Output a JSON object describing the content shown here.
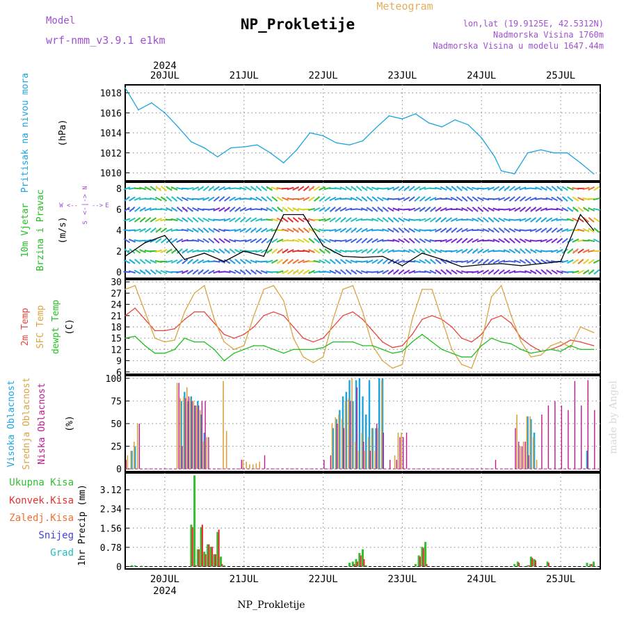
{
  "header": {
    "model_label": "Model",
    "model_name": "wrf-nmm_v3.9.1  e1km",
    "main_title": "NP_Prokletije",
    "subtitle": "Meteogram",
    "lonlat": "lon,lat (19.9125E, 42.5312N)",
    "elevation": "Nadmorska Visina 1760m",
    "model_elevation": "Nadmorska Visina u modelu 1647.44m"
  },
  "time_axis": {
    "year": "2024",
    "day_labels": [
      "20JUL",
      "21JUL",
      "22JUL",
      "23JUL",
      "24JUL",
      "25JUL"
    ]
  },
  "footer": {
    "station": "NP_Prokletije",
    "credit": "made by Angel"
  },
  "colors": {
    "pressure": "#1aa5e0",
    "wind_speed": "#000000",
    "temp2m": "#e8453c",
    "sfc_temp": "#d9a441",
    "dewpoint": "#20c020",
    "high_cloud": "#1aa5e0",
    "mid_cloud": "#d9a441",
    "low_cloud": "#c01890",
    "total_precip": "#30c030",
    "conv_precip": "#e83030",
    "frozen_precip": "#f07030",
    "snow": "#4040e0",
    "graupel": "#20c0c0",
    "grid": "#999999"
  },
  "chart_data": [
    {
      "type": "line",
      "panel": "pressure",
      "ylabel": [
        "Pritisak na nivou mora",
        "(hPa)"
      ],
      "yticks": [
        1010,
        1012,
        1014,
        1016,
        1018
      ],
      "ylim": [
        1009.2,
        1018.8
      ],
      "grid": true,
      "x_hours": [
        0,
        4,
        8,
        12,
        16,
        20,
        24,
        28,
        32,
        36,
        40,
        44,
        48,
        52,
        56,
        60,
        64,
        68,
        72,
        76,
        80,
        84,
        88,
        92,
        96,
        100,
        104,
        108,
        112,
        114,
        118,
        122,
        126,
        130,
        134,
        138,
        142
      ],
      "series": [
        {
          "name": "Pritisak na nivou mora",
          "values": [
            1018.5,
            1016.3,
            1017.0,
            1016.0,
            1014.6,
            1013.1,
            1012.5,
            1011.6,
            1012.5,
            1012.6,
            1012.8,
            1012.0,
            1011.0,
            1012.3,
            1014.0,
            1013.7,
            1013.0,
            1012.8,
            1013.2,
            1014.5,
            1015.7,
            1015.4,
            1015.9,
            1015.0,
            1014.6,
            1015.3,
            1014.8,
            1013.5,
            1011.6,
            1010.2,
            1009.9,
            1012.0,
            1012.3,
            1012.0,
            1012.0,
            1011.0,
            1009.9
          ]
        }
      ]
    },
    {
      "type": "line",
      "panel": "wind",
      "ylabel": [
        "10m Vjetar",
        "Brzina i Pravac",
        "(m/s)"
      ],
      "direction_legend": [
        "N",
        "W",
        "E",
        "S"
      ],
      "yticks": [
        0,
        2,
        4,
        6,
        8
      ],
      "ylim": [
        -0.6,
        8.6
      ],
      "grid": true,
      "x_hours": [
        0,
        6,
        12,
        18,
        24,
        30,
        36,
        42,
        48,
        54,
        60,
        66,
        72,
        78,
        84,
        90,
        96,
        102,
        108,
        114,
        120,
        126,
        132,
        138,
        142
      ],
      "series": [
        {
          "name": "brzina",
          "values": [
            1.5,
            2.8,
            3.5,
            1.2,
            1.8,
            1.0,
            2.0,
            1.5,
            5.5,
            5.5,
            2.5,
            1.5,
            1.4,
            1.5,
            0.6,
            1.8,
            1.2,
            0.5,
            0.7,
            0.8,
            0.6,
            0.8,
            1.0,
            5.5,
            4.0
          ]
        }
      ]
    },
    {
      "type": "line",
      "panel": "temperature",
      "ylabel": [
        "2m Temp",
        "SFC Temp",
        "dewpt Temp",
        "(C)"
      ],
      "yticks": [
        6,
        9,
        12,
        15,
        18,
        21,
        24,
        27,
        30
      ],
      "ylim": [
        5.4,
        30.6
      ],
      "grid": true,
      "x_hours": [
        0,
        3,
        6,
        9,
        12,
        15,
        18,
        21,
        24,
        27,
        30,
        33,
        36,
        39,
        42,
        45,
        48,
        51,
        54,
        57,
        60,
        63,
        66,
        69,
        72,
        75,
        78,
        81,
        84,
        87,
        90,
        93,
        96,
        99,
        102,
        105,
        108,
        111,
        114,
        117,
        120,
        123,
        126,
        129,
        132,
        135,
        138,
        142
      ],
      "series": [
        {
          "name": "2m Temp",
          "values": [
            21,
            23,
            20,
            17,
            17,
            17.5,
            20,
            22,
            22,
            19,
            16,
            15,
            16,
            18,
            21,
            22,
            21,
            18,
            15,
            14,
            15,
            18,
            21,
            22,
            20,
            17,
            14,
            12.5,
            13,
            16,
            20,
            21,
            20,
            18,
            15,
            14,
            16,
            20,
            21,
            19,
            15,
            13,
            11.5,
            12,
            13,
            14.5,
            14,
            13
          ]
        },
        {
          "name": "SFC Temp",
          "values": [
            28,
            29,
            22,
            15,
            14,
            14.5,
            22,
            27,
            29,
            20,
            14,
            12,
            13,
            21,
            28,
            29,
            25,
            15,
            10,
            8.5,
            10,
            20,
            28,
            29,
            22,
            13,
            9,
            7,
            8,
            20,
            28,
            28,
            20,
            12,
            8,
            7,
            14,
            26,
            29,
            21,
            14,
            10,
            10.5,
            13,
            14,
            12.5,
            18,
            16.5
          ]
        },
        {
          "name": "dewpt Temp",
          "values": [
            15,
            15.5,
            13,
            11,
            11,
            12,
            15,
            14,
            14,
            12,
            9,
            11,
            12,
            13,
            13,
            12,
            11,
            12,
            12,
            12,
            12.5,
            14,
            14,
            14,
            13,
            13,
            12,
            11,
            11.5,
            14,
            16,
            14,
            12,
            11,
            10,
            10,
            13,
            15,
            14,
            13.5,
            12,
            11,
            11.5,
            12,
            11.5,
            13,
            12,
            12
          ]
        }
      ]
    },
    {
      "type": "bar",
      "panel": "clouds",
      "ylabel": [
        "Visoka Oblacnost",
        "Srednja Oblacnost",
        "Niska Oblacnost",
        "(%)"
      ],
      "yticks": [
        0,
        25,
        50,
        75,
        100
      ],
      "ylim": [
        -3,
        103
      ],
      "grid": true,
      "series": [
        {
          "name": "Visoka Oblacnost",
          "x_hours": [
            2,
            3,
            17,
            18,
            19,
            20,
            21,
            22,
            23,
            24,
            63,
            64,
            65,
            66,
            67,
            68,
            69,
            70,
            71,
            72,
            73,
            74,
            75,
            76,
            77,
            78,
            122,
            123,
            124,
            140
          ],
          "values": [
            20,
            25,
            75,
            85,
            75,
            80,
            70,
            75,
            60,
            40,
            45,
            55,
            65,
            80,
            85,
            98,
            75,
            98,
            100,
            80,
            60,
            98,
            45,
            45,
            100,
            100,
            58,
            55,
            40,
            20
          ]
        },
        {
          "name": "Srednja Oblacnost",
          "x_hours": [
            1,
            2,
            3,
            4,
            16,
            17,
            18,
            19,
            20,
            21,
            22,
            23,
            24,
            25,
            30,
            31,
            36,
            37,
            38,
            39,
            40,
            41,
            63,
            64,
            65,
            66,
            67,
            68,
            69,
            70,
            71,
            72,
            73,
            74,
            75,
            76,
            77,
            78,
            82,
            83,
            84,
            119,
            120,
            121,
            122,
            123,
            124,
            125
          ],
          "values": [
            15,
            20,
            30,
            50,
            95,
            78,
            80,
            90,
            78,
            75,
            70,
            65,
            30,
            35,
            97,
            42,
            10,
            8,
            5,
            5,
            6,
            8,
            50,
            57,
            60,
            55,
            75,
            78,
            100,
            30,
            20,
            40,
            20,
            35,
            45,
            20,
            45,
            98,
            15,
            40,
            40,
            60,
            25,
            30,
            58,
            58,
            35,
            10
          ]
        },
        {
          "name": "Niska Oblacnost",
          "x_hours": [
            0,
            4,
            16,
            17,
            18,
            19,
            20,
            21,
            22,
            23,
            24,
            25,
            35,
            42,
            60,
            62,
            64,
            66,
            68,
            70,
            72,
            74,
            76,
            78,
            80,
            82,
            83,
            84,
            85,
            112,
            118,
            119,
            120,
            121,
            122,
            126,
            128,
            130,
            132,
            134,
            136,
            138,
            140,
            142
          ],
          "values": [
            10,
            50,
            95,
            25,
            78,
            80,
            75,
            70,
            70,
            75,
            75,
            35,
            10,
            15,
            10,
            15,
            50,
            45,
            75,
            90,
            30,
            20,
            50,
            40,
            10,
            10,
            35,
            35,
            40,
            10,
            45,
            30,
            25,
            30,
            15,
            60,
            70,
            75,
            70,
            65,
            97,
            70,
            98,
            65
          ]
        }
      ]
    },
    {
      "type": "bar",
      "panel": "precipitation",
      "ylabel": [
        "Ukupna Kisa",
        "Konvek.Kisa",
        "Zaledj.Kisa",
        "Snijeg",
        "Grad",
        "1hr Precip (mm)"
      ],
      "yticks": [
        0,
        0.78,
        1.56,
        2.34,
        3.12
      ],
      "ylim": [
        -0.1,
        3.8
      ],
      "grid": true,
      "series": [
        {
          "name": "Ukupna Kisa",
          "x_hours": [
            2,
            3,
            5,
            20,
            21,
            22,
            23,
            24,
            25,
            26,
            27,
            28,
            29,
            30,
            68,
            69,
            70,
            71,
            72,
            73,
            88,
            89,
            90,
            91,
            118,
            119,
            122,
            123,
            124,
            128,
            140,
            141,
            142
          ],
          "values": [
            0.05,
            0.05,
            0.03,
            1.7,
            3.7,
            0.7,
            1.6,
            0.6,
            0.9,
            0.8,
            0.5,
            1.4,
            0.4,
            0.05,
            0.15,
            0.2,
            0.3,
            0.55,
            0.7,
            0.05,
            0.1,
            0.45,
            0.8,
            1.0,
            0.1,
            0.2,
            0.05,
            0.4,
            0.3,
            0.2,
            0.15,
            0.1,
            0.2
          ]
        },
        {
          "name": "Konvek.Kisa",
          "x_hours": [
            20,
            21,
            22,
            23,
            24,
            25,
            26,
            27,
            28,
            29,
            69,
            70,
            71,
            72,
            89,
            90,
            91,
            119,
            122,
            123,
            124,
            128,
            141
          ],
          "values": [
            1.6,
            0.05,
            0.7,
            1.7,
            0.5,
            0.9,
            0.8,
            0.5,
            1.5,
            0.1,
            0.1,
            0.2,
            0.45,
            0.3,
            0.4,
            0.75,
            0.1,
            0.15,
            0.05,
            0.35,
            0.25,
            0.15,
            0.1
          ]
        }
      ]
    }
  ]
}
